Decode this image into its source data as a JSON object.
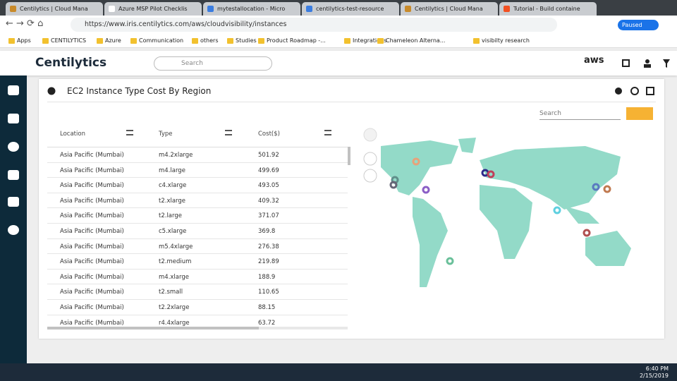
{
  "browser": {
    "tabs": [
      "Centilytics | Cloud Mana",
      "Azure MSP Pilot Checklis",
      "mytestallocation - Micro",
      "centilytics-test-resource",
      "Centilytics | Cloud Mana",
      "Tutorial - Build containe"
    ],
    "url": "https://www.iris.centilytics.com/aws/cloudvisibility/instances",
    "profile_status": "Paused",
    "bookmarks": [
      "Apps",
      "CENTILYTICS",
      "Azure",
      "Communication",
      "others",
      "Studies",
      "Product Roadmap -...",
      "Integrations",
      "Chameleon Alterna...",
      "visibilty research"
    ]
  },
  "app": {
    "logo": "Centilytics",
    "search_placeholder": "Search",
    "provider": "aws"
  },
  "widget": {
    "title": "EC2 Instance Type Cost By Region",
    "search_placeholder": "Search",
    "table": {
      "columns": [
        "Location",
        "Type",
        "Cost($)"
      ],
      "rows": [
        [
          "Asia Pacific (Mumbai)",
          "m4.2xlarge",
          501.92
        ],
        [
          "Asia Pacific (Mumbai)",
          "m4.large",
          499.69
        ],
        [
          "Asia Pacific (Mumbai)",
          "c4.xlarge",
          493.05
        ],
        [
          "Asia Pacific (Mumbai)",
          "t2.xlarge",
          409.32
        ],
        [
          "Asia Pacific (Mumbai)",
          "t2.large",
          371.07
        ],
        [
          "Asia Pacific (Mumbai)",
          "c5.xlarge",
          369.8
        ],
        [
          "Asia Pacific (Mumbai)",
          "m5.4xlarge",
          276.38
        ],
        [
          "Asia Pacific (Mumbai)",
          "t2.medium",
          219.89
        ],
        [
          "Asia Pacific (Mumbai)",
          "m4.xlarge",
          188.9
        ],
        [
          "Asia Pacific (Mumbai)",
          "t2.small",
          110.65
        ],
        [
          "Asia Pacific (Mumbai)",
          "t2.2xlarge",
          88.15
        ],
        [
          "Asia Pacific (Mumbai)",
          "r4.4xlarge",
          63.72
        ]
      ]
    }
  },
  "taskbar": {
    "time": "6:40 PM",
    "date": "2/15/2019"
  }
}
